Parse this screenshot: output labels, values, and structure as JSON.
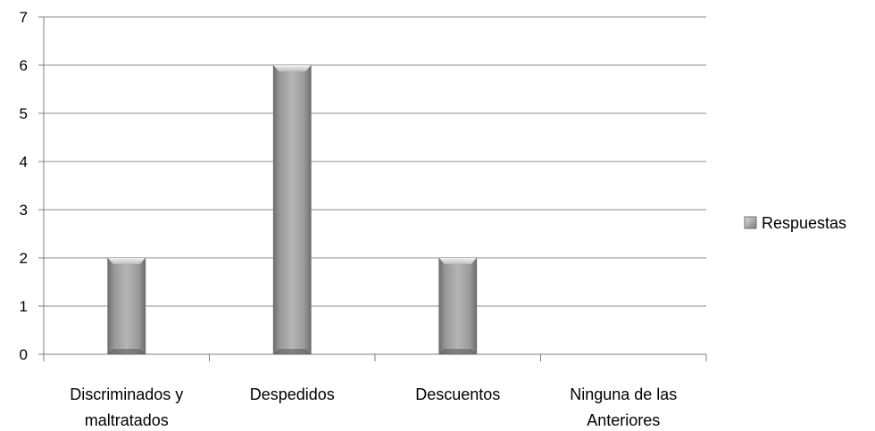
{
  "chart_data": {
    "type": "bar",
    "categories": [
      [
        "Discriminados y",
        "maltratados"
      ],
      [
        "Despedidos"
      ],
      [
        "Descuentos"
      ],
      [
        "Ninguna de las",
        "Anteriores"
      ]
    ],
    "series": [
      {
        "name": "Respuestas",
        "values": [
          2,
          6,
          2,
          0
        ]
      }
    ],
    "ylim": [
      0,
      7
    ],
    "yticks": [
      0,
      1,
      2,
      3,
      4,
      5,
      6,
      7
    ],
    "grid": true,
    "legend": "right",
    "colors": {
      "bar_light": "#d6d6d6",
      "bar_mid": "#a8a8a8",
      "bar_dark": "#6e6e6e",
      "grid": "#8c8c8c",
      "axis": "#7f7f7f"
    }
  }
}
